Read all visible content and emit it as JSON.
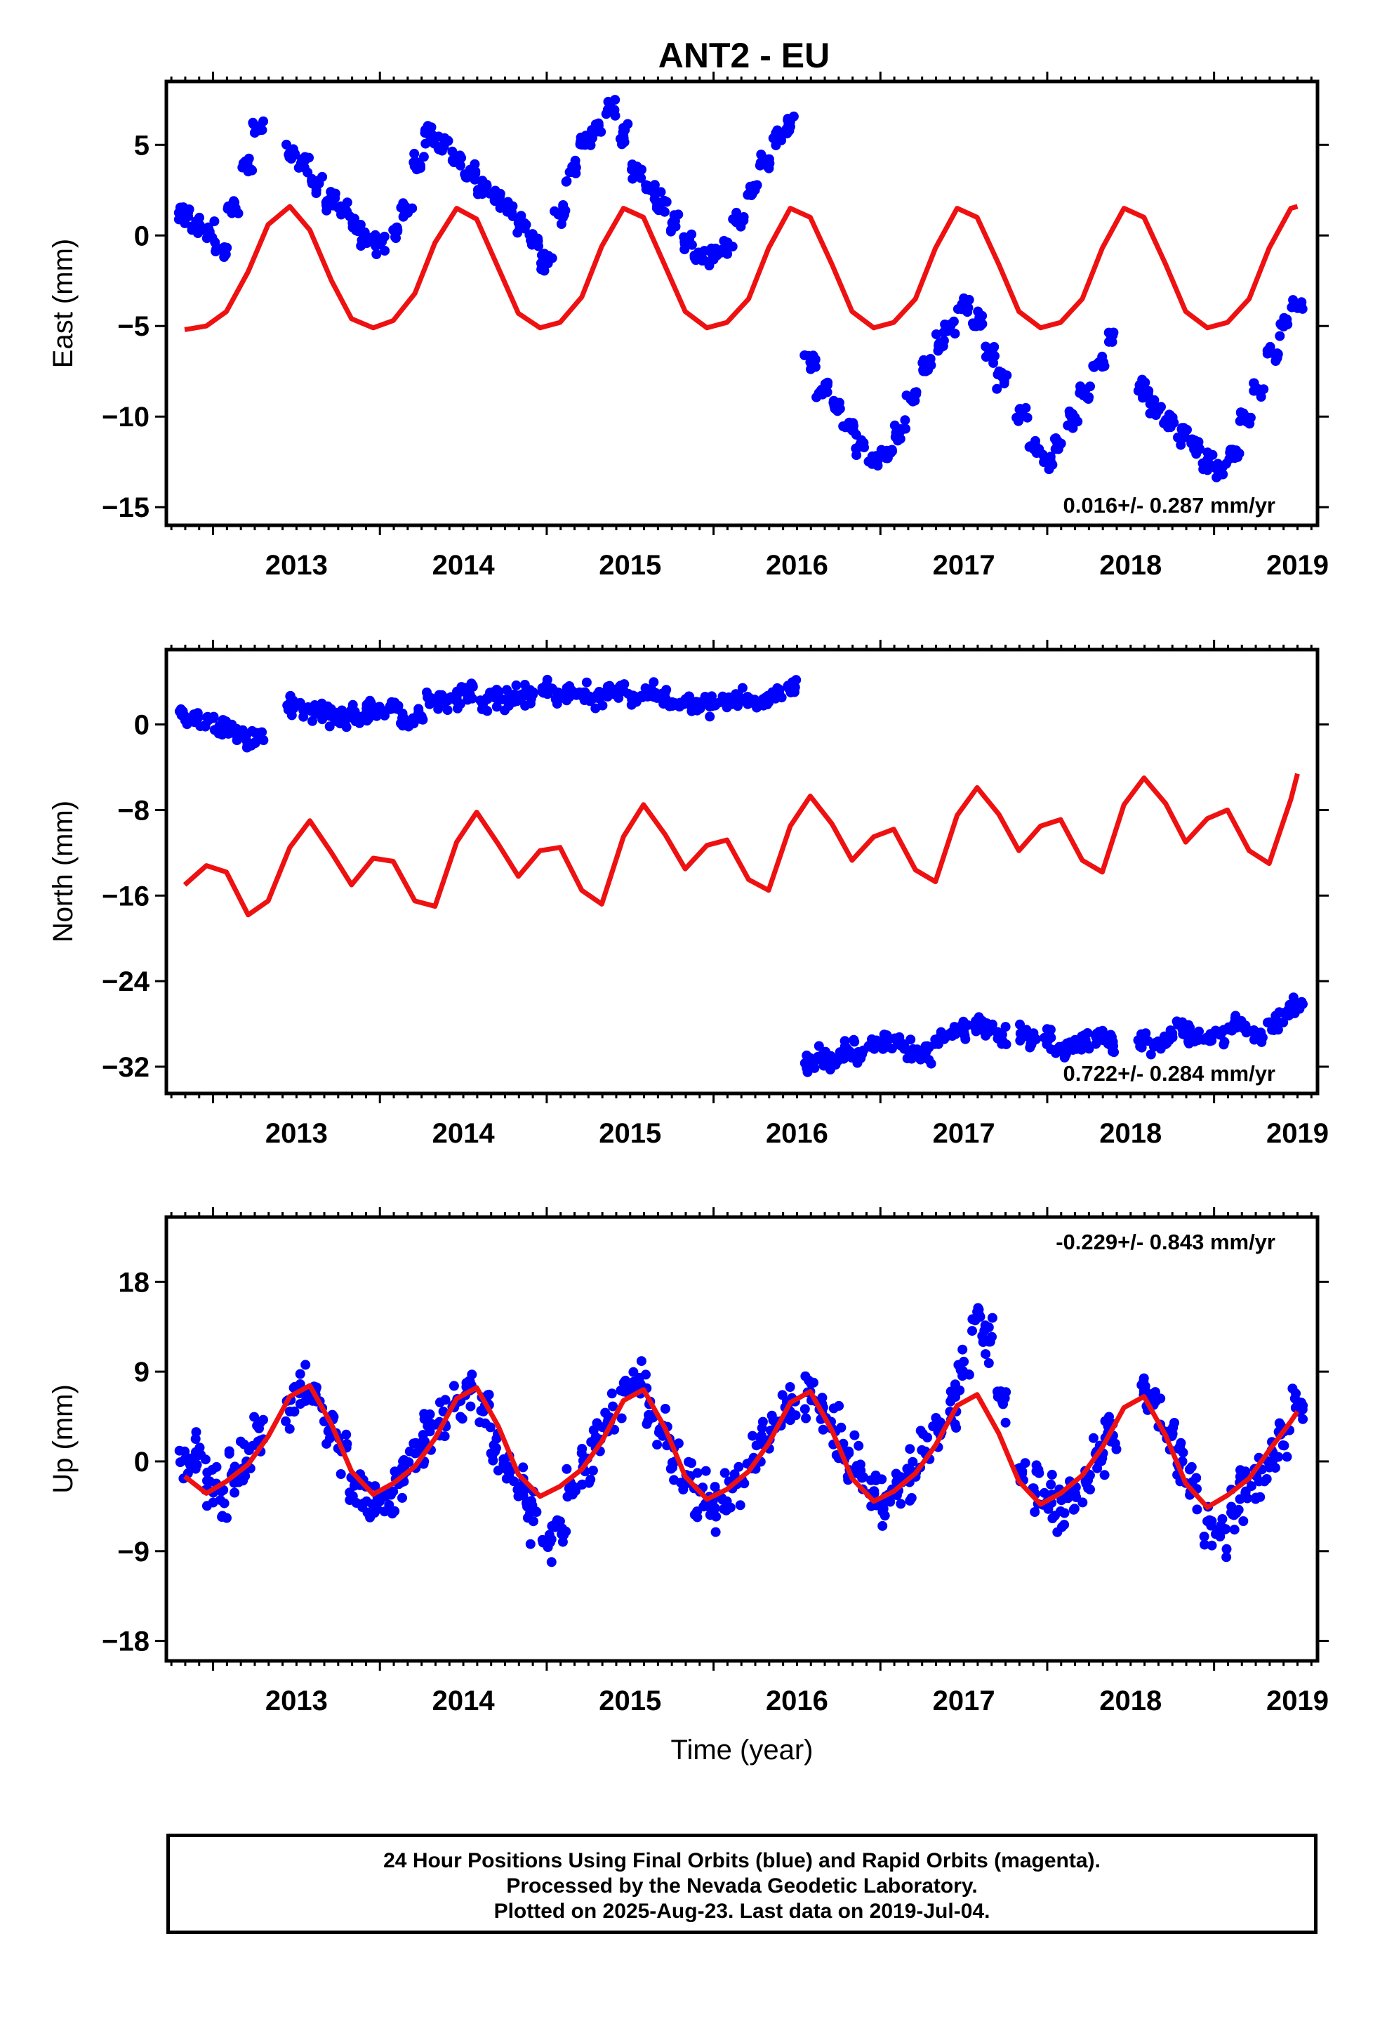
{
  "title": "ANT2 - EU",
  "footer": {
    "line1": "24 Hour Positions Using Final Orbits (blue) and Rapid Orbits (magenta).",
    "line2": "Processed by the Nevada Geodetic Laboratory.",
    "line3": "Plotted on 2025-Aug-23. Last data on 2019-Jul-04."
  },
  "colors": {
    "points": "#0000ff",
    "fit": "#ee1111",
    "frame": "#000000"
  },
  "chart_data": [
    {
      "type": "scatter",
      "title": "ANT2 - EU",
      "ylabel": "East (mm)",
      "xlabel": "",
      "xlim": [
        2012.72,
        2019.62
      ],
      "ylim": [
        -16,
        8.5
      ],
      "xticks": [
        2013,
        2014,
        2015,
        2016,
        2017,
        2018,
        2019
      ],
      "yticks": [
        5,
        0,
        -5,
        -10,
        -15
      ],
      "rate_label": "0.016+/- 0.287 mm/yr",
      "rate_position": "bottom-right",
      "grid": false,
      "series": [
        {
          "name": "",
          "kind": "points",
          "x": [
            2012.83,
            2012.9,
            2012.98,
            2013.05,
            2013.12,
            2013.2,
            2013.27,
            2013.46,
            2013.54,
            2013.62,
            2013.7,
            2013.77,
            2013.85,
            2013.92,
            2014.0,
            2014.08,
            2014.16,
            2014.23,
            2014.3,
            2014.38,
            2014.46,
            2014.54,
            2014.62,
            2014.69,
            2014.77,
            2014.85,
            2014.92,
            2015.0,
            2015.08,
            2015.15,
            2015.23,
            2015.3,
            2015.38,
            2015.46,
            2015.54,
            2015.62,
            2015.69,
            2015.77,
            2015.85,
            2015.92,
            2016.0,
            2016.08,
            2016.15,
            2016.23,
            2016.31,
            2016.38,
            2016.46,
            2016.58,
            2016.65,
            2016.73,
            2016.81,
            2016.88,
            2016.96,
            2017.04,
            2017.12,
            2017.19,
            2017.27,
            2017.35,
            2017.42,
            2017.5,
            2017.58,
            2017.65,
            2017.73,
            2017.85,
            2017.92,
            2018.0,
            2018.08,
            2018.15,
            2018.23,
            2018.31,
            2018.38,
            2018.58,
            2018.65,
            2018.73,
            2018.81,
            2018.88,
            2018.96,
            2019.04,
            2019.12,
            2019.19,
            2019.27,
            2019.35,
            2019.42,
            2019.5
          ],
          "y": [
            1.2,
            0.5,
            0.2,
            -0.8,
            1.8,
            4.0,
            6.0,
            4.5,
            4.0,
            3.0,
            2.0,
            1.2,
            0.5,
            -0.2,
            -0.5,
            0.3,
            1.5,
            4.0,
            5.5,
            5.0,
            4.2,
            3.5,
            2.6,
            1.9,
            1.3,
            0.6,
            -0.2,
            -1.5,
            1.2,
            3.5,
            5.0,
            6.0,
            7.0,
            5.5,
            3.5,
            2.5,
            1.8,
            0.8,
            -0.3,
            -1.0,
            -1.3,
            -0.8,
            0.8,
            2.5,
            4.0,
            5.5,
            6.0,
            -7.0,
            -8.5,
            -9.5,
            -10.5,
            -11.5,
            -12.5,
            -12.0,
            -10.8,
            -9.0,
            -7.2,
            -6.0,
            -5.0,
            -4.0,
            -4.8,
            -6.5,
            -7.8,
            -10.0,
            -11.8,
            -12.5,
            -11.5,
            -10.0,
            -8.5,
            -7.0,
            -5.5,
            -8.5,
            -9.5,
            -10.2,
            -11.0,
            -11.8,
            -12.5,
            -13.0,
            -12.0,
            -10.0,
            -8.5,
            -6.5,
            -5.0,
            -4.0
          ]
        },
        {
          "name": "",
          "kind": "line",
          "x": [
            2012.83,
            2012.96,
            2013.08,
            2013.21,
            2013.33,
            2013.46,
            2013.58,
            2013.71,
            2013.83,
            2013.96,
            2014.08,
            2014.21,
            2014.33,
            2014.46,
            2014.58,
            2014.71,
            2014.83,
            2014.96,
            2015.08,
            2015.21,
            2015.33,
            2015.46,
            2015.58,
            2015.71,
            2015.83,
            2015.96,
            2016.08,
            2016.21,
            2016.33,
            2016.46,
            2016.58,
            2016.71,
            2016.83,
            2016.96,
            2017.08,
            2017.21,
            2017.33,
            2017.46,
            2017.58,
            2017.71,
            2017.83,
            2017.96,
            2018.08,
            2018.21,
            2018.33,
            2018.46,
            2018.58,
            2018.71,
            2018.83,
            2018.96,
            2019.08,
            2019.21,
            2019.33,
            2019.46,
            2019.5
          ],
          "y": [
            -5.2,
            -5.0,
            -4.2,
            -2.0,
            0.6,
            1.6,
            0.3,
            -2.5,
            -4.6,
            -5.1,
            -4.7,
            -3.2,
            -0.4,
            1.5,
            0.9,
            -1.8,
            -4.3,
            -5.1,
            -4.8,
            -3.4,
            -0.6,
            1.5,
            1.0,
            -1.7,
            -4.2,
            -5.1,
            -4.8,
            -3.5,
            -0.7,
            1.5,
            1.0,
            -1.6,
            -4.2,
            -5.1,
            -4.8,
            -3.5,
            -0.7,
            1.5,
            1.0,
            -1.6,
            -4.2,
            -5.1,
            -4.8,
            -3.5,
            -0.7,
            1.5,
            1.0,
            -1.6,
            -4.2,
            -5.1,
            -4.8,
            -3.5,
            -0.7,
            1.5,
            1.6
          ]
        }
      ]
    },
    {
      "type": "scatter",
      "title": "",
      "ylabel": "North (mm)",
      "xlabel": "",
      "xlim": [
        2012.72,
        2019.62
      ],
      "ylim": [
        -34.5,
        7
      ],
      "xticks": [
        2013,
        2014,
        2015,
        2016,
        2017,
        2018,
        2019
      ],
      "yticks": [
        0,
        -8,
        -16,
        -24,
        -32
      ],
      "rate_label": "0.722+/- 0.284 mm/yr",
      "rate_position": "bottom-right",
      "grid": false,
      "series": [
        {
          "name": "",
          "kind": "points",
          "x": [
            2012.83,
            2012.9,
            2012.98,
            2013.05,
            2013.12,
            2013.2,
            2013.27,
            2013.46,
            2013.54,
            2013.62,
            2013.7,
            2013.77,
            2013.85,
            2013.92,
            2014.0,
            2014.08,
            2014.16,
            2014.23,
            2014.3,
            2014.38,
            2014.46,
            2014.54,
            2014.62,
            2014.69,
            2014.77,
            2014.85,
            2014.92,
            2015.0,
            2015.08,
            2015.15,
            2015.23,
            2015.3,
            2015.38,
            2015.46,
            2015.54,
            2015.62,
            2015.69,
            2015.77,
            2015.85,
            2015.92,
            2016.0,
            2016.08,
            2016.15,
            2016.23,
            2016.31,
            2016.38,
            2016.46,
            2016.58,
            2016.65,
            2016.73,
            2016.81,
            2016.88,
            2016.96,
            2017.04,
            2017.12,
            2017.19,
            2017.27,
            2017.35,
            2017.42,
            2017.5,
            2017.58,
            2017.65,
            2017.73,
            2017.85,
            2017.92,
            2018.0,
            2018.08,
            2018.15,
            2018.23,
            2018.31,
            2018.38,
            2018.58,
            2018.65,
            2018.73,
            2018.81,
            2018.88,
            2018.96,
            2019.04,
            2019.12,
            2019.19,
            2019.27,
            2019.35,
            2019.42,
            2019.5
          ],
          "y": [
            0.8,
            0.2,
            0.5,
            -0.3,
            -0.8,
            -1.5,
            -1.0,
            2.0,
            1.5,
            1.0,
            0.8,
            0.5,
            1.2,
            1.5,
            1.0,
            1.8,
            0.2,
            1.0,
            2.5,
            2.0,
            2.5,
            2.8,
            2.0,
            2.5,
            2.2,
            2.8,
            3.0,
            3.2,
            2.5,
            2.8,
            3.0,
            2.5,
            3.0,
            3.2,
            2.5,
            3.0,
            2.5,
            2.0,
            2.2,
            1.5,
            1.8,
            2.0,
            2.5,
            2.2,
            2.5,
            3.0,
            3.5,
            -31.5,
            -31.0,
            -31.5,
            -30.5,
            -31.0,
            -30.0,
            -29.5,
            -30.0,
            -30.5,
            -30.8,
            -29.5,
            -29.0,
            -28.5,
            -28.0,
            -28.5,
            -29.0,
            -29.0,
            -29.5,
            -29.5,
            -30.5,
            -30.0,
            -29.5,
            -29.0,
            -30.0,
            -29.5,
            -30.0,
            -29.5,
            -28.5,
            -29.0,
            -29.5,
            -29.0,
            -28.0,
            -28.5,
            -29.0,
            -28.0,
            -27.0,
            -26.5
          ]
        },
        {
          "name": "",
          "kind": "line",
          "x": [
            2012.83,
            2012.96,
            2013.08,
            2013.21,
            2013.33,
            2013.46,
            2013.58,
            2013.71,
            2013.83,
            2013.96,
            2014.08,
            2014.21,
            2014.33,
            2014.46,
            2014.58,
            2014.71,
            2014.83,
            2014.96,
            2015.08,
            2015.21,
            2015.33,
            2015.46,
            2015.58,
            2015.71,
            2015.83,
            2015.96,
            2016.08,
            2016.21,
            2016.33,
            2016.46,
            2016.58,
            2016.71,
            2016.83,
            2016.96,
            2017.08,
            2017.21,
            2017.33,
            2017.46,
            2017.58,
            2017.71,
            2017.83,
            2017.96,
            2018.08,
            2018.21,
            2018.33,
            2018.46,
            2018.58,
            2018.71,
            2018.83,
            2018.96,
            2019.08,
            2019.21,
            2019.33,
            2019.46,
            2019.5
          ],
          "y": [
            -15.0,
            -13.2,
            -13.8,
            -17.8,
            -16.5,
            -11.5,
            -9.0,
            -12.0,
            -15.0,
            -12.5,
            -12.8,
            -16.5,
            -17.0,
            -11.0,
            -8.2,
            -11.2,
            -14.2,
            -11.8,
            -11.5,
            -15.5,
            -16.8,
            -10.5,
            -7.5,
            -10.3,
            -13.5,
            -11.3,
            -10.8,
            -14.5,
            -15.5,
            -9.5,
            -6.7,
            -9.3,
            -12.7,
            -10.5,
            -9.8,
            -13.6,
            -14.7,
            -8.5,
            -5.9,
            -8.4,
            -11.8,
            -9.5,
            -8.9,
            -12.7,
            -13.8,
            -7.5,
            -5.0,
            -7.4,
            -11.0,
            -8.8,
            -8.0,
            -11.8,
            -13.0,
            -7.0,
            -4.6
          ]
        }
      ]
    },
    {
      "type": "scatter",
      "title": "",
      "ylabel": "Up (mm)",
      "xlabel": "Time (year)",
      "xlim": [
        2012.72,
        2019.62
      ],
      "ylim": [
        -20,
        24.5
      ],
      "xticks": [
        2013,
        2014,
        2015,
        2016,
        2017,
        2018,
        2019
      ],
      "yticks": [
        18,
        9,
        0,
        -9,
        -18
      ],
      "rate_label": "-0.229+/- 0.843 mm/yr",
      "rate_position": "top-right",
      "grid": false,
      "series": [
        {
          "name": "",
          "kind": "points",
          "x": [
            2012.83,
            2012.9,
            2012.98,
            2013.05,
            2013.12,
            2013.2,
            2013.27,
            2013.46,
            2013.54,
            2013.62,
            2013.7,
            2013.77,
            2013.85,
            2013.92,
            2014.0,
            2014.08,
            2014.16,
            2014.23,
            2014.3,
            2014.38,
            2014.46,
            2014.54,
            2014.62,
            2014.69,
            2014.77,
            2014.85,
            2014.92,
            2015.0,
            2015.08,
            2015.15,
            2015.23,
            2015.3,
            2015.38,
            2015.46,
            2015.54,
            2015.62,
            2015.69,
            2015.77,
            2015.85,
            2015.92,
            2016.0,
            2016.08,
            2016.15,
            2016.23,
            2016.31,
            2016.38,
            2016.46,
            2016.58,
            2016.65,
            2016.73,
            2016.81,
            2016.88,
            2016.96,
            2017.04,
            2017.12,
            2017.19,
            2017.27,
            2017.35,
            2017.42,
            2017.5,
            2017.58,
            2017.65,
            2017.73,
            2017.85,
            2017.92,
            2018.0,
            2018.08,
            2018.15,
            2018.23,
            2018.31,
            2018.38,
            2018.58,
            2018.65,
            2018.73,
            2018.81,
            2018.88,
            2018.96,
            2019.04,
            2019.12,
            2019.19,
            2019.27,
            2019.35,
            2019.42,
            2019.5
          ],
          "y": [
            1.0,
            0.5,
            -2.0,
            -3.0,
            -1.0,
            0.0,
            2.0,
            5.0,
            7.0,
            6.0,
            4.0,
            1.0,
            -2.0,
            -4.0,
            -4.0,
            -3.0,
            -1.0,
            1.0,
            3.0,
            5.0,
            6.0,
            8.0,
            5.0,
            1.0,
            -1.0,
            -3.0,
            -6.0,
            -8.0,
            -6.0,
            -3.0,
            -1.0,
            2.0,
            4.0,
            7.0,
            8.0,
            6.0,
            3.0,
            0.0,
            -2.0,
            -3.0,
            -5.0,
            -4.0,
            -2.0,
            0.0,
            2.0,
            4.0,
            5.0,
            7.0,
            5.0,
            3.0,
            1.0,
            -1.0,
            -3.0,
            -4.0,
            -2.0,
            -1.0,
            1.0,
            3.0,
            6.0,
            10.0,
            15.0,
            12.0,
            6.0,
            -1.0,
            -3.0,
            -4.0,
            -5.0,
            -3.0,
            -2.0,
            0.0,
            2.0,
            7.0,
            6.0,
            3.0,
            0.0,
            -3.0,
            -6.0,
            -7.0,
            -5.0,
            -3.0,
            -2.0,
            0.0,
            3.0,
            6.0
          ]
        },
        {
          "name": "",
          "kind": "line",
          "x": [
            2012.83,
            2012.96,
            2013.08,
            2013.21,
            2013.33,
            2013.46,
            2013.58,
            2013.71,
            2013.83,
            2013.96,
            2014.08,
            2014.21,
            2014.33,
            2014.46,
            2014.58,
            2014.71,
            2014.83,
            2014.96,
            2015.08,
            2015.21,
            2015.33,
            2015.46,
            2015.58,
            2015.71,
            2015.83,
            2015.96,
            2016.08,
            2016.21,
            2016.33,
            2016.46,
            2016.58,
            2016.71,
            2016.83,
            2016.96,
            2017.08,
            2017.21,
            2017.33,
            2017.46,
            2017.58,
            2017.71,
            2017.83,
            2017.96,
            2018.08,
            2018.21,
            2018.33,
            2018.46,
            2018.58,
            2018.71,
            2018.83,
            2018.96,
            2019.08,
            2019.21,
            2019.33,
            2019.46,
            2019.5
          ],
          "y": [
            -1.5,
            -3.2,
            -2.0,
            -0.3,
            2.5,
            6.5,
            7.6,
            3.7,
            -1.0,
            -3.3,
            -2.2,
            -0.5,
            2.3,
            6.3,
            7.4,
            3.5,
            -1.3,
            -3.5,
            -2.5,
            -0.8,
            2.0,
            6.1,
            7.2,
            3.3,
            -1.5,
            -3.8,
            -2.8,
            -1.0,
            1.8,
            5.9,
            7.0,
            3.1,
            -1.7,
            -4.0,
            -3.0,
            -1.2,
            1.6,
            5.6,
            6.7,
            2.8,
            -2.0,
            -4.3,
            -3.2,
            -1.4,
            1.4,
            5.4,
            6.5,
            2.6,
            -2.2,
            -4.6,
            -3.4,
            -1.7,
            1.1,
            4.0,
            5.0
          ]
        }
      ]
    }
  ]
}
